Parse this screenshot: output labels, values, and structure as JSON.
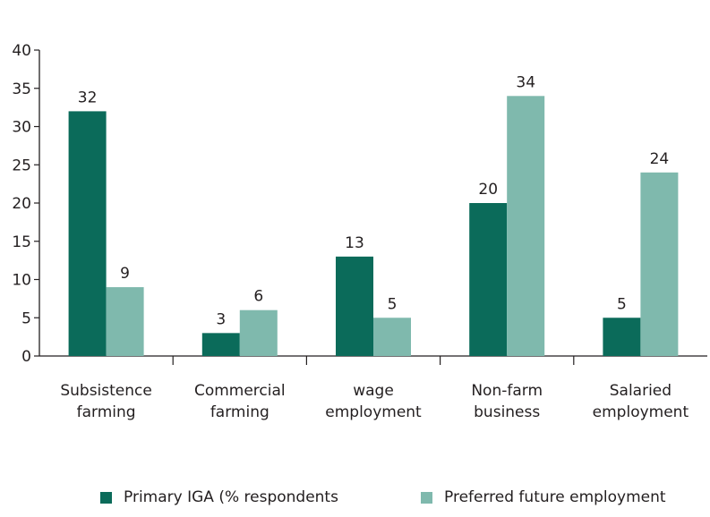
{
  "chart_data": {
    "type": "bar",
    "categories": [
      [
        "Subsistence",
        "farming"
      ],
      [
        "Commercial",
        "farming"
      ],
      [
        "wage",
        "employment"
      ],
      [
        "Non-farm",
        "business"
      ],
      [
        "Salaried",
        "employment"
      ]
    ],
    "series": [
      {
        "name": "Primary IGA (% respondents",
        "color": "#0b6b5a",
        "values": [
          32,
          3,
          13,
          20,
          5
        ]
      },
      {
        "name": "Preferred future employment",
        "color": "#7fb9ad",
        "values": [
          9,
          6,
          5,
          34,
          24
        ]
      }
    ],
    "ylim": [
      0,
      40
    ],
    "yticks": [
      0,
      5,
      10,
      15,
      20,
      25,
      30,
      35,
      40
    ],
    "grid": false,
    "legend_position": "bottom"
  }
}
